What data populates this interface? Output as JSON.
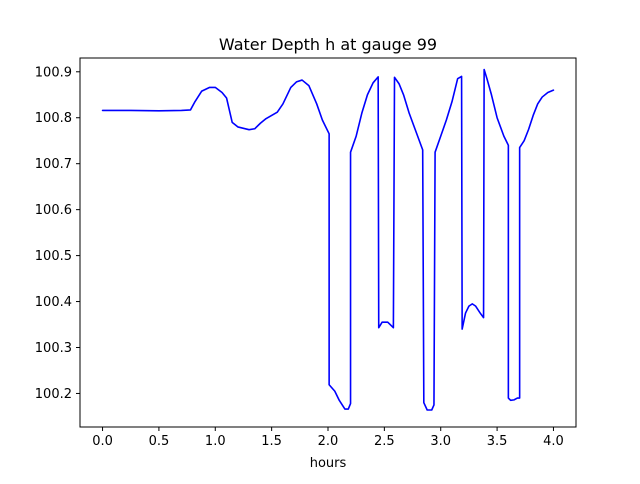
{
  "chart_data": {
    "type": "line",
    "title": "Water Depth h at gauge 99",
    "xlabel": "hours",
    "ylabel": "",
    "xlim": [
      -0.2,
      4.2
    ],
    "ylim": [
      100.127,
      100.93
    ],
    "xticks": [
      0.0,
      0.5,
      1.0,
      1.5,
      2.0,
      2.5,
      3.0,
      3.5,
      4.0
    ],
    "xtick_labels": [
      "0.0",
      "0.5",
      "1.0",
      "1.5",
      "2.0",
      "2.5",
      "3.0",
      "3.5",
      "4.0"
    ],
    "yticks": [
      100.2,
      100.3,
      100.4,
      100.5,
      100.6,
      100.7,
      100.8,
      100.9
    ],
    "ytick_labels": [
      "100.2",
      "100.3",
      "100.4",
      "100.5",
      "100.6",
      "100.7",
      "100.8",
      "100.9"
    ],
    "grid": false,
    "legend": "none",
    "series": [
      {
        "color": "#0000ff",
        "x": [
          0.0,
          0.25,
          0.5,
          0.7,
          0.78,
          0.82,
          0.88,
          0.95,
          1.0,
          1.06,
          1.1,
          1.15,
          1.2,
          1.3,
          1.35,
          1.4,
          1.45,
          1.55,
          1.6,
          1.67,
          1.72,
          1.77,
          1.83,
          1.9,
          1.95,
          2.01,
          2.01,
          2.06,
          2.1,
          2.15,
          2.18,
          2.2,
          2.2,
          2.25,
          2.3,
          2.35,
          2.4,
          2.445,
          2.45,
          2.48,
          2.5,
          2.53,
          2.58,
          2.59,
          2.63,
          2.67,
          2.72,
          2.78,
          2.84,
          2.85,
          2.88,
          2.92,
          2.94,
          2.95,
          3.0,
          3.05,
          3.1,
          3.15,
          3.185,
          3.19,
          3.22,
          3.25,
          3.28,
          3.31,
          3.35,
          3.38,
          3.385,
          3.41,
          3.45,
          3.5,
          3.56,
          3.6,
          3.6,
          3.62,
          3.65,
          3.68,
          3.7,
          3.7,
          3.74,
          3.78,
          3.82,
          3.86,
          3.9,
          3.95,
          4.0
        ],
        "y": [
          100.816,
          100.816,
          100.815,
          100.816,
          100.817,
          100.835,
          100.858,
          100.866,
          100.866,
          100.855,
          100.843,
          100.79,
          100.78,
          100.774,
          100.776,
          100.788,
          100.798,
          100.812,
          100.83,
          100.866,
          100.878,
          100.882,
          100.87,
          100.83,
          100.795,
          100.765,
          100.219,
          100.205,
          100.185,
          100.166,
          100.166,
          100.178,
          100.725,
          100.76,
          100.81,
          100.85,
          100.876,
          100.889,
          100.343,
          100.355,
          100.355,
          100.355,
          100.343,
          100.888,
          100.874,
          100.85,
          100.81,
          100.77,
          100.73,
          100.18,
          100.164,
          100.164,
          100.175,
          100.725,
          100.76,
          100.795,
          100.835,
          100.885,
          100.89,
          100.34,
          100.375,
          100.39,
          100.395,
          100.39,
          100.375,
          100.365,
          100.905,
          100.885,
          100.85,
          100.8,
          100.76,
          100.74,
          100.19,
          100.185,
          100.186,
          100.19,
          100.19,
          100.735,
          100.75,
          100.775,
          100.805,
          100.83,
          100.845,
          100.855,
          100.86
        ]
      }
    ]
  }
}
